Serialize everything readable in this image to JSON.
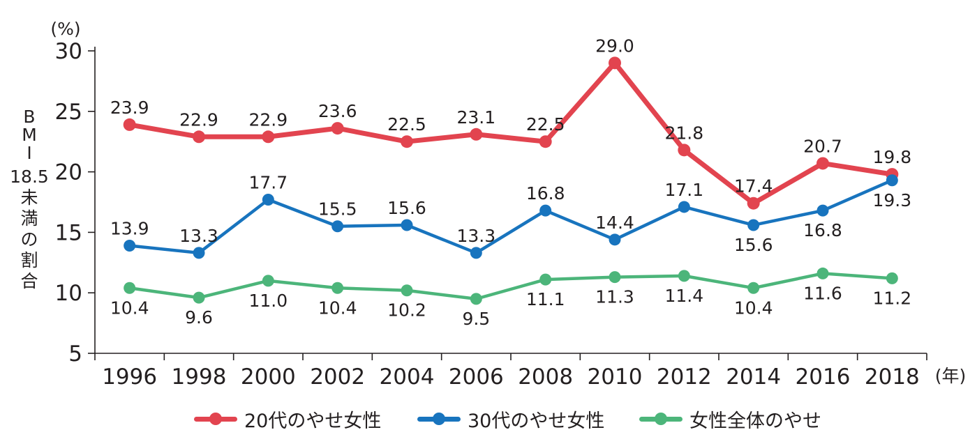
{
  "chart_data": {
    "type": "line",
    "title": "",
    "y_unit": "(%)",
    "x_unit": "(年)",
    "ylabel": "BMI18.5未満の割合",
    "ylabel_parts": [
      "B",
      "M",
      "I",
      "18.5",
      "未",
      "満",
      "の",
      "割",
      "合"
    ],
    "ylim": [
      5,
      30
    ],
    "yticks": [
      "5",
      "10",
      "15",
      "20",
      "25",
      "30"
    ],
    "categories": [
      "1996",
      "1998",
      "2000",
      "2002",
      "2004",
      "2006",
      "2008",
      "2010",
      "2012",
      "2014",
      "2016",
      "2018"
    ],
    "grid": false,
    "legend_position": "bottom",
    "series": [
      {
        "name": "20代のやせ女性",
        "color": "#e2444f",
        "values": [
          23.9,
          22.9,
          22.9,
          23.6,
          22.5,
          23.1,
          22.5,
          29.0,
          21.8,
          17.4,
          20.7,
          19.8
        ],
        "labels": [
          "23.9",
          "22.9",
          "22.9",
          "23.6",
          "22.5",
          "23.1",
          "22.5",
          "29.0",
          "21.8",
          "17.4",
          "20.7",
          "19.8"
        ],
        "label_side": [
          "above",
          "above",
          "above",
          "above",
          "above",
          "above",
          "above",
          "above",
          "above",
          "above",
          "above",
          "above"
        ]
      },
      {
        "name": "30代のやせ女性",
        "color": "#1874be",
        "values": [
          13.9,
          13.3,
          17.7,
          15.5,
          15.6,
          13.3,
          16.8,
          14.4,
          17.1,
          15.6,
          16.8,
          19.3
        ],
        "labels": [
          "13.9",
          "13.3",
          "17.7",
          "15.5",
          "15.6",
          "13.3",
          "16.8",
          "14.4",
          "17.1",
          "15.6",
          "16.8",
          "19.3"
        ],
        "label_side": [
          "above",
          "above",
          "above",
          "above",
          "above",
          "above",
          "above",
          "above",
          "above",
          "below",
          "below",
          "below"
        ]
      },
      {
        "name": "女性全体のやせ",
        "color": "#4cb57a",
        "values": [
          10.4,
          9.6,
          11.0,
          10.4,
          10.2,
          9.5,
          11.1,
          11.3,
          11.4,
          10.4,
          11.6,
          11.2
        ],
        "labels": [
          "10.4",
          "9.6",
          "11.0",
          "10.4",
          "10.2",
          "9.5",
          "11.1",
          "11.3",
          "11.4",
          "10.4",
          "11.6",
          "11.2"
        ],
        "label_side": [
          "below",
          "below",
          "below",
          "below",
          "below",
          "below",
          "below",
          "below",
          "below",
          "below",
          "below",
          "below"
        ]
      }
    ]
  }
}
